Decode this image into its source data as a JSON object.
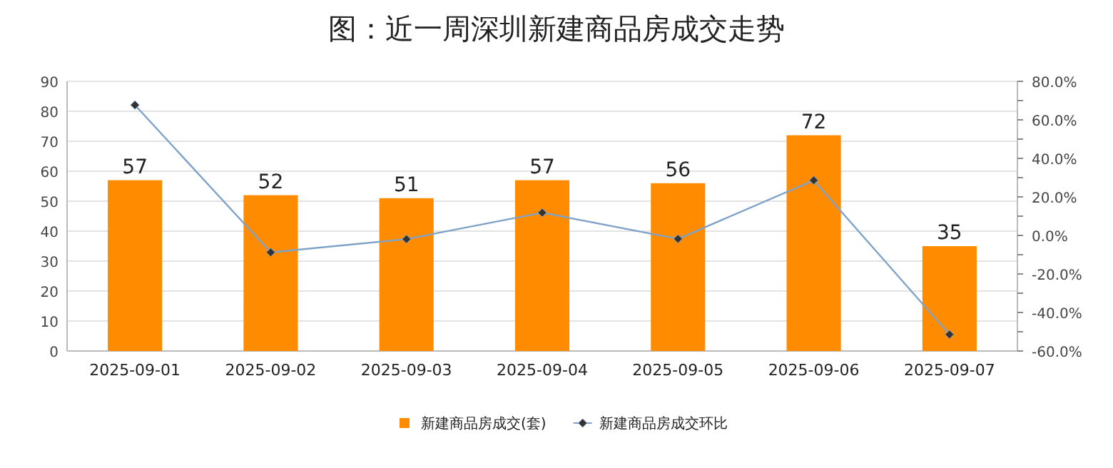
{
  "chart_data": {
    "type": "bar",
    "title": "图：近一周深圳新建商品房成交走势",
    "categories": [
      "2025-09-01",
      "2025-09-02",
      "2025-09-03",
      "2025-09-04",
      "2025-09-05",
      "2025-09-06",
      "2025-09-07"
    ],
    "series": [
      {
        "name": "新建商品房成交(套)",
        "color": "#ff8c00",
        "values": [
          57,
          52,
          51,
          57,
          56,
          72,
          35
        ],
        "value_labels": [
          "57",
          "52",
          "51",
          "57",
          "56",
          "72",
          "35"
        ]
      },
      {
        "name": "新建商品房成交环比",
        "type": "line",
        "axis": "y2",
        "color": "#7fa3c8",
        "values": [
          67.7,
          -8.8,
          -1.9,
          11.8,
          -1.8,
          28.6,
          -51.4
        ]
      }
    ],
    "ylim": [
      0,
      90
    ],
    "yticks": [
      0,
      10,
      20,
      30,
      40,
      50,
      60,
      70,
      80,
      90
    ],
    "y2lim": [
      -60,
      80
    ],
    "y2ticks": [
      {
        "value": -60,
        "label": "-60.0%"
      },
      {
        "value": -50,
        "label": null
      },
      {
        "value": -40,
        "label": "-40.0%"
      },
      {
        "value": -30,
        "label": null
      },
      {
        "value": -20,
        "label": "-20.0%"
      },
      {
        "value": -10,
        "label": null
      },
      {
        "value": 0,
        "label": "0.0%"
      },
      {
        "value": 10,
        "label": null
      },
      {
        "value": 20,
        "label": "20.0%"
      },
      {
        "value": 30,
        "label": null
      },
      {
        "value": 40,
        "label": "40.0%"
      },
      {
        "value": 50,
        "label": null
      },
      {
        "value": 60,
        "label": "60.0%"
      },
      {
        "value": 70,
        "label": null
      },
      {
        "value": 80,
        "label": "80.0%"
      }
    ],
    "grid": "y",
    "legend": "bottom",
    "marker": "diamond"
  }
}
